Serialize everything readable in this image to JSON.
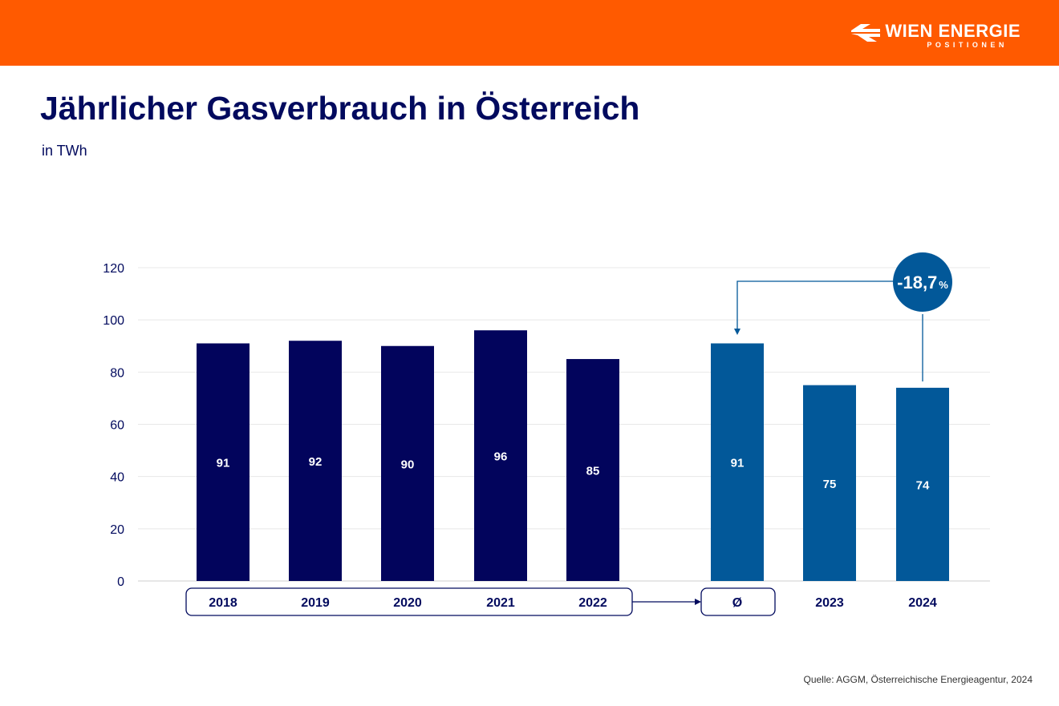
{
  "header": {
    "brand": "WIEN ENERGIE",
    "brand_sub": "POSITIONEN",
    "brand_color": "#ff5a00"
  },
  "title": "Jährlicher Gasverbrauch in Österreich",
  "subtitle": "in TWh",
  "source": "Quelle: AGGM, Österreichische Energieagentur, 2024",
  "chart_data": {
    "type": "bar",
    "categories": [
      "2018",
      "2019",
      "2020",
      "2021",
      "2022",
      "Ø",
      "2023",
      "2024"
    ],
    "values": [
      91,
      92,
      90,
      96,
      85,
      91,
      75,
      74
    ],
    "colors": [
      "#02045c",
      "#02045c",
      "#02045c",
      "#02045c",
      "#02045c",
      "#025899",
      "#025899",
      "#025899"
    ],
    "ylim": [
      0,
      120
    ],
    "yticks": [
      0,
      20,
      40,
      60,
      80,
      100,
      120
    ],
    "grid": true,
    "annotation": {
      "label": "-18,7",
      "unit": "%",
      "from": "Ø",
      "to": "2024"
    }
  }
}
